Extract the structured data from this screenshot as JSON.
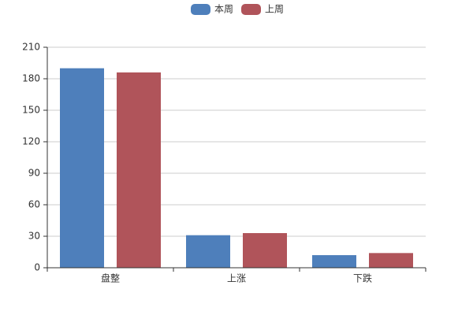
{
  "chart_data": {
    "type": "bar",
    "categories": [
      "盘整",
      "上涨",
      "下跌"
    ],
    "series": [
      {
        "name": "本周",
        "color": "#4e7fbb",
        "values": [
          190,
          31,
          12
        ]
      },
      {
        "name": "上周",
        "color": "#b0545a",
        "values": [
          186,
          33,
          14
        ]
      }
    ],
    "ylim": [
      0,
      210
    ],
    "yticks": [
      0,
      30,
      60,
      90,
      120,
      150,
      180,
      210
    ],
    "grid": true,
    "legend": "top"
  }
}
